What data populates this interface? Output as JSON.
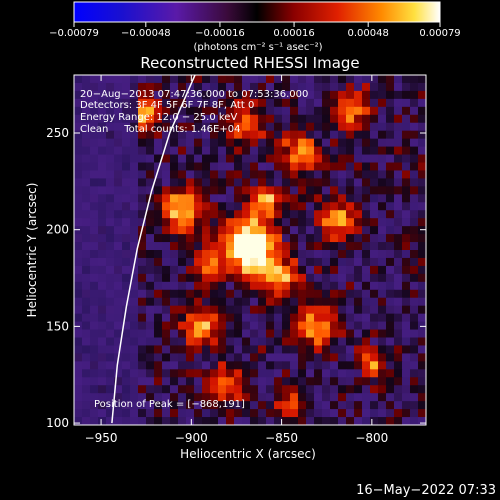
{
  "chart_data": {
    "type": "heatmap",
    "title": "Reconstructed RHESSI Image",
    "xlabel": "Heliocentric X (arcsec)",
    "ylabel": "Heliocentric Y (arcsec)",
    "xlim": [
      -965,
      -770
    ],
    "ylim": [
      99,
      280
    ],
    "xticks": [
      -950,
      -900,
      -850,
      -800
    ],
    "yticks": [
      100,
      150,
      200,
      250
    ],
    "xtick_labels": [
      "−950",
      "−900",
      "−850",
      "−800"
    ],
    "ytick_labels": [
      "100",
      "150",
      "200",
      "250"
    ],
    "colorbar": {
      "range": [
        -0.00079,
        0.00079
      ],
      "ticks": [
        -0.00079,
        -0.00048,
        -0.00016,
        0.00016,
        0.00048,
        0.00079
      ],
      "tick_labels": [
        "−0.00079",
        "−0.00048",
        "−0.00016",
        "0.00016",
        "0.00048",
        "0.00079"
      ],
      "units_label": "(photons cm⁻² s⁻¹ asec⁻²)",
      "colors": [
        "#0000ff",
        "#3a1aa0",
        "#5a2a90",
        "#000000",
        "#8a0000",
        "#ff3000",
        "#ff9000",
        "#ffff60",
        "#ffffff"
      ]
    },
    "peak": [
      -868,
      191
    ],
    "annotations": {
      "time_range": "20−Aug−2013 07:47:36.000 to 07:53:36.000",
      "detectors": "Detectors: 3F 4F 5F 6F 7F 8F, Att 0",
      "energy": "Energy Range: 12.0 − 25.0 keV",
      "clean": "Clean     Total counts: 1.46E+04",
      "peak_text": "Position of Peak = [−868,191]"
    },
    "limb_curve": [
      [
        -944,
        100
      ],
      [
        -941,
        130
      ],
      [
        -936,
        160
      ],
      [
        -930,
        190
      ],
      [
        -922,
        220
      ],
      [
        -912,
        250
      ],
      [
        -897,
        282
      ]
    ]
  },
  "footer": {
    "timestamp": "16−May−2022 07:33"
  }
}
